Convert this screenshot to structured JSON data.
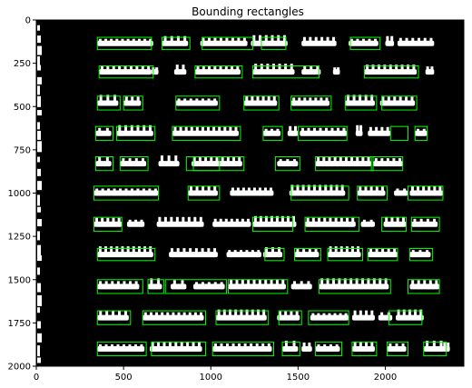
{
  "figure": {
    "title": "Bounding rectangles"
  },
  "image": {
    "background": "#000000",
    "foreground": "#ffffff",
    "box_color": "#00ff00",
    "width": 2450,
    "height": 2000
  },
  "axes": {
    "x_ticks": [
      0,
      500,
      1000,
      1500,
      2000
    ],
    "y_ticks": [
      0,
      250,
      500,
      750,
      1000,
      1250,
      1500,
      1750,
      2000
    ]
  },
  "rows": [
    {
      "y": 100,
      "h": 70,
      "boxes": [
        [
          350,
          310
        ],
        [
          720,
          160
        ],
        [
          950,
          290
        ],
        [
          1290,
          140
        ],
        [
          1800,
          170
        ]
      ],
      "blobs": [
        [
          350,
          320
        ],
        [
          720,
          150
        ],
        [
          940,
          270
        ],
        [
          1230,
          210
        ],
        [
          1520,
          200
        ],
        [
          1790,
          170
        ],
        [
          2000,
          50
        ],
        [
          2070,
          210
        ]
      ]
    },
    {
      "y": 265,
      "h": 70,
      "boxes": [
        [
          360,
          310
        ],
        [
          910,
          270
        ],
        [
          1240,
          380
        ],
        [
          1880,
          310
        ]
      ],
      "blobs": [
        [
          360,
          300
        ],
        [
          660,
          40
        ],
        [
          790,
          70
        ],
        [
          910,
          260
        ],
        [
          1240,
          240
        ],
        [
          1520,
          110
        ],
        [
          1700,
          40
        ],
        [
          1880,
          300
        ],
        [
          2230,
          50
        ]
      ]
    },
    {
      "y": 440,
      "h": 80,
      "boxes": [
        [
          350,
          130
        ],
        [
          500,
          110
        ],
        [
          800,
          250
        ],
        [
          1190,
          200
        ],
        [
          1460,
          230
        ],
        [
          1770,
          180
        ],
        [
          1980,
          200
        ]
      ],
      "blobs": [
        [
          350,
          120
        ],
        [
          500,
          100
        ],
        [
          800,
          240
        ],
        [
          1190,
          190
        ],
        [
          1460,
          220
        ],
        [
          1770,
          170
        ],
        [
          1970,
          200
        ]
      ]
    },
    {
      "y": 615,
      "h": 80,
      "boxes": [
        [
          340,
          100
        ],
        [
          460,
          220
        ],
        [
          780,
          390
        ],
        [
          1300,
          110
        ],
        [
          1500,
          280
        ],
        [
          2030,
          100
        ],
        [
          2170,
          70
        ]
      ],
      "blobs": [
        [
          340,
          90
        ],
        [
          460,
          210
        ],
        [
          780,
          380
        ],
        [
          1300,
          100
        ],
        [
          1440,
          60
        ],
        [
          1510,
          270
        ],
        [
          1830,
          40
        ],
        [
          1900,
          130
        ],
        [
          2170,
          70
        ]
      ]
    },
    {
      "y": 790,
      "h": 80,
      "boxes": [
        [
          340,
          100
        ],
        [
          480,
          160
        ],
        [
          860,
          190
        ],
        [
          900,
          290
        ],
        [
          1370,
          140
        ],
        [
          1600,
          330
        ],
        [
          1920,
          180
        ]
      ],
      "blobs": [
        [
          340,
          90
        ],
        [
          480,
          150
        ],
        [
          700,
          120
        ],
        [
          890,
          290
        ],
        [
          1380,
          120
        ],
        [
          1600,
          320
        ],
        [
          1930,
          170
        ]
      ]
    },
    {
      "y": 960,
      "h": 80,
      "boxes": [
        [
          330,
          370
        ],
        [
          870,
          180
        ],
        [
          1460,
          330
        ],
        [
          1840,
          170
        ],
        [
          2130,
          200
        ]
      ],
      "blobs": [
        [
          330,
          370
        ],
        [
          870,
          170
        ],
        [
          1110,
          250
        ],
        [
          1450,
          320
        ],
        [
          1840,
          160
        ],
        [
          2050,
          80
        ],
        [
          2140,
          190
        ]
      ]
    },
    {
      "y": 1140,
      "h": 80,
      "boxes": [
        [
          330,
          160
        ],
        [
          1240,
          230
        ],
        [
          1540,
          310
        ],
        [
          1980,
          140
        ],
        [
          2150,
          160
        ]
      ],
      "blobs": [
        [
          330,
          160
        ],
        [
          520,
          100
        ],
        [
          690,
          270
        ],
        [
          1010,
          220
        ],
        [
          1240,
          250
        ],
        [
          1540,
          290
        ],
        [
          1860,
          80
        ],
        [
          1990,
          130
        ],
        [
          2150,
          150
        ]
      ]
    },
    {
      "y": 1320,
      "h": 70,
      "boxes": [
        [
          350,
          330
        ],
        [
          1310,
          110
        ],
        [
          1480,
          150
        ],
        [
          1670,
          200
        ],
        [
          1900,
          170
        ],
        [
          2140,
          130
        ]
      ],
      "blobs": [
        [
          350,
          320
        ],
        [
          760,
          280
        ],
        [
          1090,
          200
        ],
        [
          1300,
          110
        ],
        [
          1480,
          140
        ],
        [
          1670,
          190
        ],
        [
          1900,
          170
        ],
        [
          2140,
          120
        ]
      ]
    },
    {
      "y": 1500,
      "h": 80,
      "boxes": [
        [
          350,
          260
        ],
        [
          640,
          90
        ],
        [
          740,
          350
        ],
        [
          1100,
          340
        ],
        [
          1620,
          410
        ],
        [
          2130,
          180
        ]
      ],
      "blobs": [
        [
          350,
          240
        ],
        [
          640,
          80
        ],
        [
          770,
          90
        ],
        [
          900,
          180
        ],
        [
          1100,
          330
        ],
        [
          1460,
          120
        ],
        [
          1620,
          400
        ],
        [
          2140,
          170
        ]
      ]
    },
    {
      "y": 1680,
      "h": 80,
      "boxes": [
        [
          350,
          190
        ],
        [
          610,
          360
        ],
        [
          1030,
          300
        ],
        [
          1390,
          130
        ],
        [
          1560,
          230
        ],
        [
          2020,
          190
        ]
      ],
      "blobs": [
        [
          350,
          180
        ],
        [
          610,
          350
        ],
        [
          1030,
          290
        ],
        [
          1380,
          130
        ],
        [
          1570,
          220
        ],
        [
          1810,
          130
        ],
        [
          1960,
          80
        ],
        [
          2060,
          160
        ]
      ]
    },
    {
      "y": 1860,
      "h": 80,
      "boxes": [
        [
          350,
          280
        ],
        [
          660,
          310
        ],
        [
          1010,
          350
        ],
        [
          1410,
          100
        ],
        [
          1600,
          150
        ],
        [
          1810,
          140
        ],
        [
          2010,
          120
        ],
        [
          2220,
          130
        ]
      ],
      "blobs": [
        [
          350,
          270
        ],
        [
          650,
          300
        ],
        [
          1010,
          340
        ],
        [
          1410,
          90
        ],
        [
          1520,
          60
        ],
        [
          1600,
          140
        ],
        [
          1810,
          130
        ],
        [
          2010,
          110
        ],
        [
          2220,
          120
        ],
        [
          2330,
          40
        ]
      ]
    }
  ],
  "left_strip_marks": [
    30,
    90,
    150,
    210,
    260,
    330,
    380,
    440,
    520,
    590,
    640,
    700,
    790,
    860,
    930,
    1010,
    1080,
    1150,
    1220,
    1300,
    1360,
    1430,
    1520,
    1590,
    1660,
    1740,
    1810,
    1880,
    1950
  ]
}
